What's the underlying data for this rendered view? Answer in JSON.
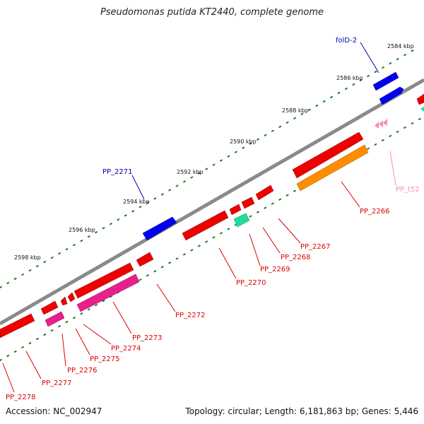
{
  "title": "Pseudomonas putida KT2440, complete genome",
  "footer": {
    "accession": "Accession: NC_002947",
    "topology": "Topology: circular; Length: 6,181,863 bp; Genes: 5,446"
  },
  "colors": {
    "backbone": "#8a8a8a",
    "tick": "#1f7a1f",
    "forward": "#0000ee",
    "cds": "#ee0000",
    "pink": "#e8208c",
    "orange": "#ff8c00",
    "teal": "#22dd99",
    "trna": "#ff88bb"
  },
  "kbp_labels": [
    "2584 kbp",
    "2586 kbp",
    "2588 kbp",
    "2590 kbp",
    "2592 kbp",
    "2594 kbp",
    "2596 kbp",
    "2598 kbp"
  ],
  "gene_labels": [
    "folD-2",
    "PP_2271",
    "PP_t52",
    "PP_2266",
    "PP_2267",
    "PP_2268",
    "PP_2269",
    "PP_2270",
    "PP_2272",
    "PP_2273",
    "PP_2274",
    "PP_2275",
    "PP_2276",
    "PP_2277",
    "PP_2278"
  ]
}
